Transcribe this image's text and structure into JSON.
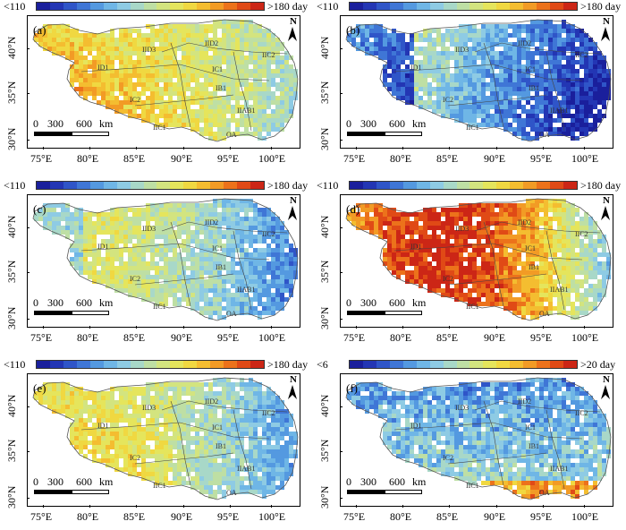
{
  "colorbar_days": {
    "low": "<110",
    "high": ">180 day",
    "colors": [
      "#1a1f9c",
      "#2336b4",
      "#2f55c8",
      "#3f76d6",
      "#5499e0",
      "#6fb6e6",
      "#8ecbe4",
      "#a8d8c8",
      "#bedfa4",
      "#d3e47f",
      "#e5e55c",
      "#f0d841",
      "#f4bd30",
      "#f29b25",
      "#ec721b",
      "#e04a16",
      "#cc2616"
    ]
  },
  "colorbar_f": {
    "low": "<6",
    "high": ">20 day"
  },
  "scalebar": {
    "zero": "0",
    "mid": "300",
    "max": "600",
    "unit": "km"
  },
  "north_label": "N",
  "lat_labels": [
    "40°N",
    "35°N",
    "30°N"
  ],
  "lon_labels": [
    "75°E",
    "80°E",
    "85°E",
    "90°E",
    "95°E",
    "100°E"
  ],
  "zone_labels": {
    "IID3": "IID3",
    "IID2": "IID2",
    "IIC2": "IIC2",
    "ID1": "ID1",
    "IC1": "IC1",
    "IB1": "IB1",
    "IIC1": "IIC1",
    "IIAB1": "IIAB1",
    "OA": "OA",
    "IC2": "IC2"
  },
  "panels": [
    {
      "label": "(a)",
      "scheme": "warm-southwest"
    },
    {
      "label": "(b)",
      "scheme": "cool-east"
    },
    {
      "label": "(c)",
      "scheme": "mixed-blue-east"
    },
    {
      "label": "(d)",
      "scheme": "hot-center"
    },
    {
      "label": "(e)",
      "scheme": "mixed"
    },
    {
      "label": "(f)",
      "scheme": "blue-low"
    }
  ]
}
